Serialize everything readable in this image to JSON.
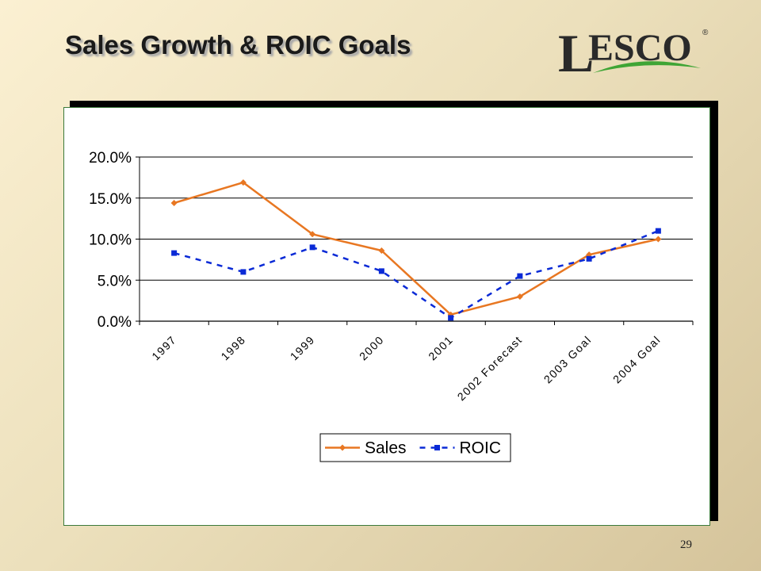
{
  "slide": {
    "title": "Sales Growth & ROIC Goals",
    "page_number": "29"
  },
  "logo": {
    "text_L": "L",
    "text_rest": "ESCO",
    "registered": "®",
    "text_color": "#2a2a2a",
    "swoosh_color": "#3fa535"
  },
  "colors": {
    "sales": "#e87722",
    "roic": "#0a2ad6",
    "frame_border": "#3b7a3b"
  },
  "chart_data": {
    "type": "line",
    "title": "",
    "xlabel": "",
    "ylabel": "",
    "categories": [
      "1997",
      "1998",
      "1999",
      "2000",
      "2001",
      "2002 Forecast",
      "2003 Goal",
      "2004 Goal"
    ],
    "series": [
      {
        "name": "Sales",
        "values": [
          14.4,
          16.9,
          10.6,
          8.6,
          0.8,
          3.0,
          8.1,
          10.0
        ],
        "color": "#e87722",
        "style": "solid",
        "marker": "diamond"
      },
      {
        "name": "ROIC",
        "values": [
          8.3,
          6.0,
          9.0,
          6.1,
          0.4,
          5.5,
          7.6,
          11.0
        ],
        "color": "#0a2ad6",
        "style": "dashed",
        "marker": "square"
      }
    ],
    "ylim": [
      0,
      20
    ],
    "yticks": [
      "0.0%",
      "5.0%",
      "10.0%",
      "15.0%",
      "20.0%"
    ],
    "ytick_values": [
      0,
      5,
      10,
      15,
      20
    ],
    "grid": true,
    "legend_position": "bottom"
  }
}
